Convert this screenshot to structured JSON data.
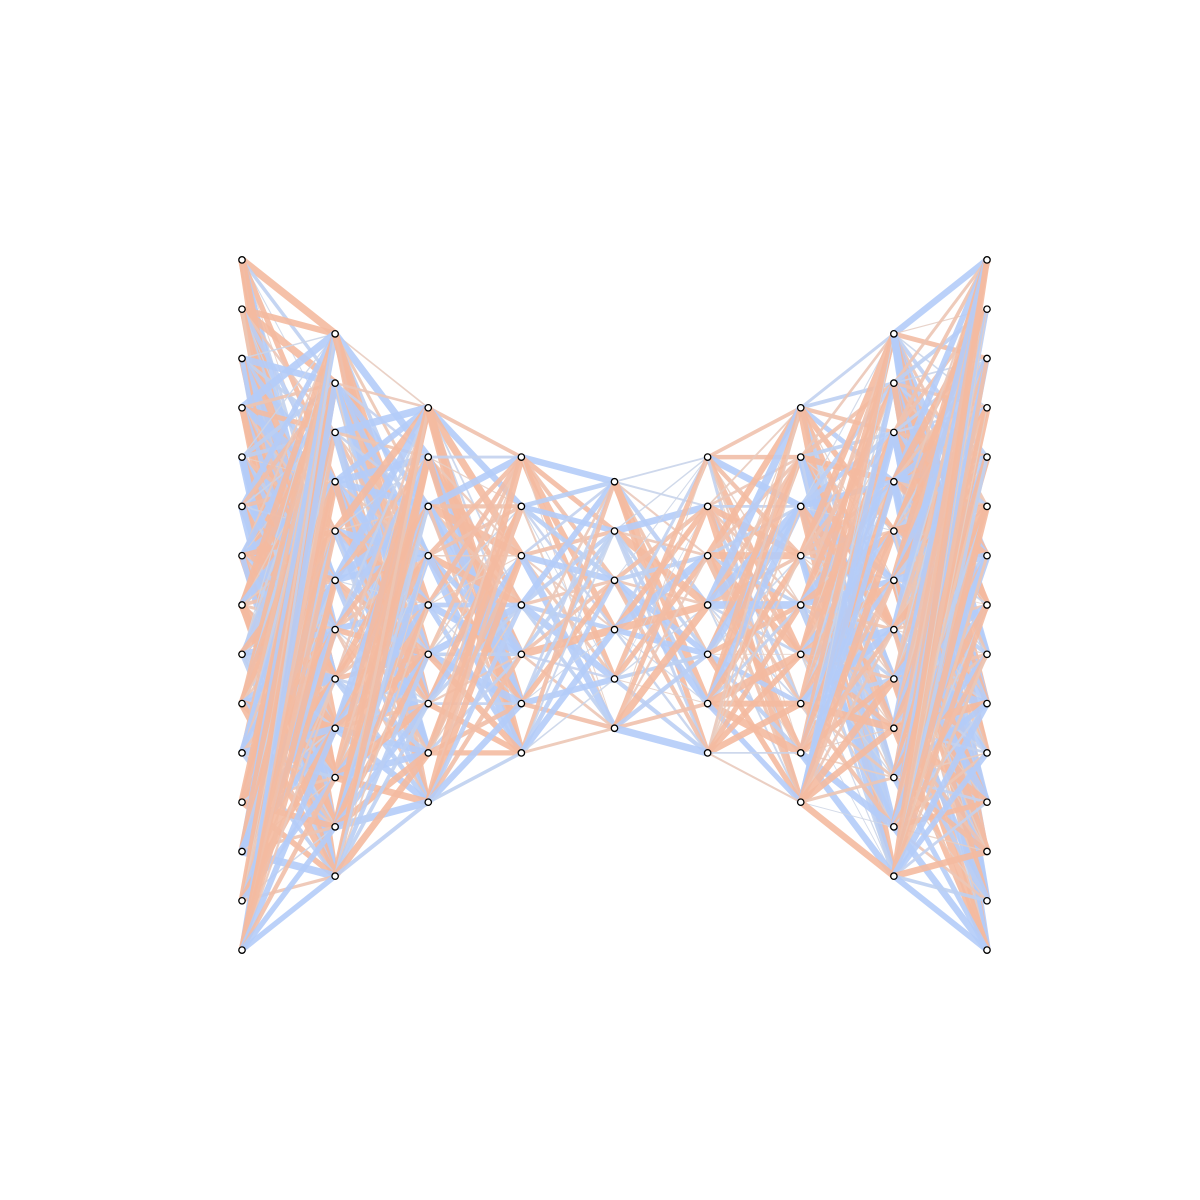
{
  "network": {
    "layers": [
      15,
      12,
      9,
      7,
      6,
      7,
      9,
      12,
      15
    ]
  }
}
